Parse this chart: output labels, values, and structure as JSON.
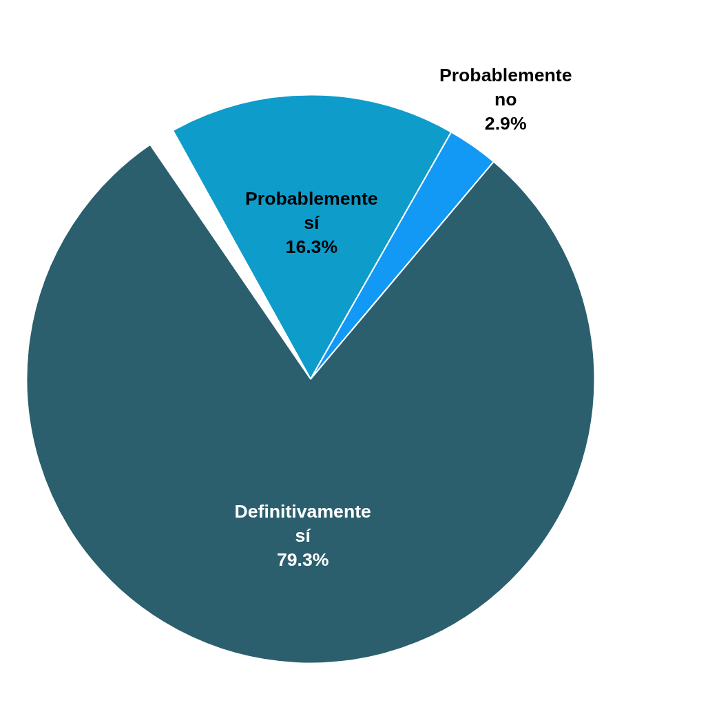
{
  "chart_data": {
    "type": "pie",
    "categories": [
      "Probablemente sí",
      "Probablemente no",
      "Definitivamente sí"
    ],
    "values": [
      16.3,
      2.9,
      79.3
    ],
    "colors": [
      "#0e9ccb",
      "#1199f5",
      "#2b5f6e"
    ],
    "value_labels": [
      "16.3%",
      "2.9%",
      "79.3%"
    ]
  }
}
